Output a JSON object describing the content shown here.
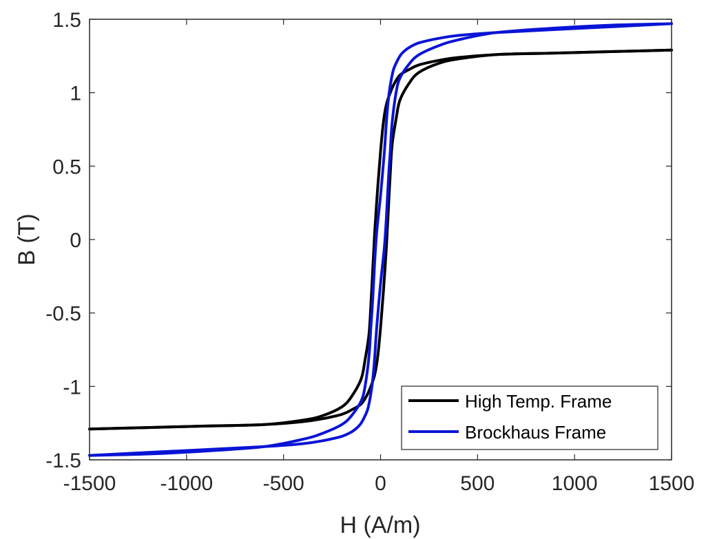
{
  "chart_data": {
    "type": "line",
    "title": "",
    "xlabel": "H (A/m)",
    "ylabel": "B (T)",
    "xlim": [
      -1500,
      1500
    ],
    "ylim": [
      -1.5,
      1.5
    ],
    "xticks": [
      -1500,
      -1000,
      -500,
      0,
      500,
      1000,
      1500
    ],
    "yticks": [
      -1.5,
      -1,
      -0.5,
      0,
      0.5,
      1,
      1.5
    ],
    "xtick_labels": [
      "-1500",
      "-1000",
      "-500",
      "0",
      "500",
      "1000",
      "1500"
    ],
    "ytick_labels": [
      "-1.5",
      "-1",
      "-0.5",
      "0",
      "0.5",
      "1",
      "1.5"
    ],
    "grid": false,
    "legend_position": "bottom-right",
    "series": [
      {
        "name": "High Temp. Frame",
        "color": "#000000",
        "branches": [
          {
            "x": [
              1500,
              1200,
              900,
              600,
              400,
              300,
              200,
              150,
              100,
              70,
              50,
              30,
              15,
              0,
              -15,
              -30,
              -40,
              -50,
              -60,
              -80,
              -100,
              -150,
              -200,
              -300,
              -400,
              -600,
              -900,
              -1200,
              -1500
            ],
            "y": [
              1.29,
              1.28,
              1.27,
              1.26,
              1.24,
              1.22,
              1.19,
              1.16,
              1.12,
              1.06,
              1.0,
              0.92,
              0.8,
              0.6,
              0.35,
              0.05,
              -0.2,
              -0.45,
              -0.65,
              -0.82,
              -0.95,
              -1.07,
              -1.14,
              -1.2,
              -1.23,
              -1.26,
              -1.27,
              -1.28,
              -1.29
            ]
          },
          {
            "x": [
              -1500,
              -1200,
              -900,
              -600,
              -400,
              -300,
              -200,
              -150,
              -100,
              -70,
              -50,
              -30,
              -15,
              0,
              15,
              30,
              40,
              50,
              60,
              80,
              100,
              150,
              200,
              300,
              400,
              600,
              900,
              1200,
              1500
            ],
            "y": [
              -1.29,
              -1.28,
              -1.27,
              -1.26,
              -1.24,
              -1.22,
              -1.19,
              -1.16,
              -1.12,
              -1.06,
              -1.0,
              -0.92,
              -0.8,
              -0.6,
              -0.35,
              -0.05,
              0.2,
              0.45,
              0.65,
              0.82,
              0.95,
              1.07,
              1.14,
              1.2,
              1.23,
              1.26,
              1.27,
              1.28,
              1.29
            ]
          }
        ]
      },
      {
        "name": "Brockhaus Frame",
        "color": "#0a14d6",
        "branches": [
          {
            "x": [
              1500,
              1200,
              900,
              600,
              400,
              300,
              200,
              150,
              120,
              100,
              80,
              65,
              50,
              40,
              30,
              20,
              0,
              -20,
              -30,
              -40,
              -50,
              -60,
              -80,
              -100,
              -150,
              -200,
              -300,
              -400,
              -600,
              -900,
              -1200,
              -1500
            ],
            "y": [
              1.47,
              1.45,
              1.43,
              1.41,
              1.39,
              1.37,
              1.34,
              1.31,
              1.28,
              1.25,
              1.2,
              1.15,
              1.05,
              0.95,
              0.8,
              0.6,
              0.3,
              0.05,
              -0.15,
              -0.4,
              -0.6,
              -0.8,
              -1.0,
              -1.1,
              -1.2,
              -1.26,
              -1.32,
              -1.36,
              -1.41,
              -1.44,
              -1.46,
              -1.47
            ]
          },
          {
            "x": [
              -1500,
              -1200,
              -900,
              -600,
              -400,
              -300,
              -200,
              -150,
              -120,
              -100,
              -80,
              -65,
              -50,
              -40,
              -30,
              -20,
              0,
              20,
              30,
              40,
              50,
              60,
              80,
              100,
              150,
              200,
              300,
              400,
              600,
              900,
              1200,
              1500
            ],
            "y": [
              -1.47,
              -1.45,
              -1.43,
              -1.41,
              -1.39,
              -1.37,
              -1.34,
              -1.31,
              -1.28,
              -1.25,
              -1.2,
              -1.15,
              -1.05,
              -0.95,
              -0.8,
              -0.6,
              -0.3,
              -0.05,
              0.15,
              0.4,
              0.6,
              0.8,
              1.0,
              1.1,
              1.2,
              1.26,
              1.32,
              1.36,
              1.41,
              1.44,
              1.46,
              1.47
            ]
          }
        ]
      }
    ]
  }
}
